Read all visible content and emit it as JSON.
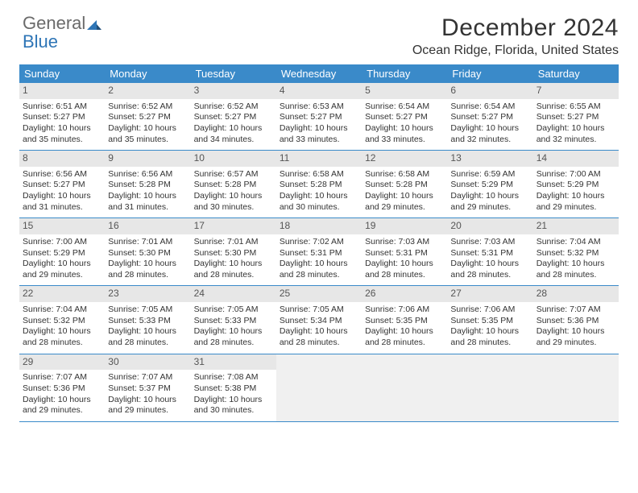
{
  "logo": {
    "text_gray": "General",
    "text_blue": "Blue"
  },
  "header": {
    "month_title": "December 2024",
    "location": "Ocean Ridge, Florida, United States"
  },
  "colors": {
    "header_bg": "#3a8ac9",
    "header_text": "#ffffff",
    "daynum_bg": "#e7e7e7",
    "border": "#3a8ac9",
    "logo_gray": "#6b6b6b",
    "logo_blue": "#2e75b6"
  },
  "weekdays": [
    "Sunday",
    "Monday",
    "Tuesday",
    "Wednesday",
    "Thursday",
    "Friday",
    "Saturday"
  ],
  "weeks": [
    [
      {
        "n": "1",
        "sr": "Sunrise: 6:51 AM",
        "ss": "Sunset: 5:27 PM",
        "dl1": "Daylight: 10 hours",
        "dl2": "and 35 minutes."
      },
      {
        "n": "2",
        "sr": "Sunrise: 6:52 AM",
        "ss": "Sunset: 5:27 PM",
        "dl1": "Daylight: 10 hours",
        "dl2": "and 35 minutes."
      },
      {
        "n": "3",
        "sr": "Sunrise: 6:52 AM",
        "ss": "Sunset: 5:27 PM",
        "dl1": "Daylight: 10 hours",
        "dl2": "and 34 minutes."
      },
      {
        "n": "4",
        "sr": "Sunrise: 6:53 AM",
        "ss": "Sunset: 5:27 PM",
        "dl1": "Daylight: 10 hours",
        "dl2": "and 33 minutes."
      },
      {
        "n": "5",
        "sr": "Sunrise: 6:54 AM",
        "ss": "Sunset: 5:27 PM",
        "dl1": "Daylight: 10 hours",
        "dl2": "and 33 minutes."
      },
      {
        "n": "6",
        "sr": "Sunrise: 6:54 AM",
        "ss": "Sunset: 5:27 PM",
        "dl1": "Daylight: 10 hours",
        "dl2": "and 32 minutes."
      },
      {
        "n": "7",
        "sr": "Sunrise: 6:55 AM",
        "ss": "Sunset: 5:27 PM",
        "dl1": "Daylight: 10 hours",
        "dl2": "and 32 minutes."
      }
    ],
    [
      {
        "n": "8",
        "sr": "Sunrise: 6:56 AM",
        "ss": "Sunset: 5:27 PM",
        "dl1": "Daylight: 10 hours",
        "dl2": "and 31 minutes."
      },
      {
        "n": "9",
        "sr": "Sunrise: 6:56 AM",
        "ss": "Sunset: 5:28 PM",
        "dl1": "Daylight: 10 hours",
        "dl2": "and 31 minutes."
      },
      {
        "n": "10",
        "sr": "Sunrise: 6:57 AM",
        "ss": "Sunset: 5:28 PM",
        "dl1": "Daylight: 10 hours",
        "dl2": "and 30 minutes."
      },
      {
        "n": "11",
        "sr": "Sunrise: 6:58 AM",
        "ss": "Sunset: 5:28 PM",
        "dl1": "Daylight: 10 hours",
        "dl2": "and 30 minutes."
      },
      {
        "n": "12",
        "sr": "Sunrise: 6:58 AM",
        "ss": "Sunset: 5:28 PM",
        "dl1": "Daylight: 10 hours",
        "dl2": "and 29 minutes."
      },
      {
        "n": "13",
        "sr": "Sunrise: 6:59 AM",
        "ss": "Sunset: 5:29 PM",
        "dl1": "Daylight: 10 hours",
        "dl2": "and 29 minutes."
      },
      {
        "n": "14",
        "sr": "Sunrise: 7:00 AM",
        "ss": "Sunset: 5:29 PM",
        "dl1": "Daylight: 10 hours",
        "dl2": "and 29 minutes."
      }
    ],
    [
      {
        "n": "15",
        "sr": "Sunrise: 7:00 AM",
        "ss": "Sunset: 5:29 PM",
        "dl1": "Daylight: 10 hours",
        "dl2": "and 29 minutes."
      },
      {
        "n": "16",
        "sr": "Sunrise: 7:01 AM",
        "ss": "Sunset: 5:30 PM",
        "dl1": "Daylight: 10 hours",
        "dl2": "and 28 minutes."
      },
      {
        "n": "17",
        "sr": "Sunrise: 7:01 AM",
        "ss": "Sunset: 5:30 PM",
        "dl1": "Daylight: 10 hours",
        "dl2": "and 28 minutes."
      },
      {
        "n": "18",
        "sr": "Sunrise: 7:02 AM",
        "ss": "Sunset: 5:31 PM",
        "dl1": "Daylight: 10 hours",
        "dl2": "and 28 minutes."
      },
      {
        "n": "19",
        "sr": "Sunrise: 7:03 AM",
        "ss": "Sunset: 5:31 PM",
        "dl1": "Daylight: 10 hours",
        "dl2": "and 28 minutes."
      },
      {
        "n": "20",
        "sr": "Sunrise: 7:03 AM",
        "ss": "Sunset: 5:31 PM",
        "dl1": "Daylight: 10 hours",
        "dl2": "and 28 minutes."
      },
      {
        "n": "21",
        "sr": "Sunrise: 7:04 AM",
        "ss": "Sunset: 5:32 PM",
        "dl1": "Daylight: 10 hours",
        "dl2": "and 28 minutes."
      }
    ],
    [
      {
        "n": "22",
        "sr": "Sunrise: 7:04 AM",
        "ss": "Sunset: 5:32 PM",
        "dl1": "Daylight: 10 hours",
        "dl2": "and 28 minutes."
      },
      {
        "n": "23",
        "sr": "Sunrise: 7:05 AM",
        "ss": "Sunset: 5:33 PM",
        "dl1": "Daylight: 10 hours",
        "dl2": "and 28 minutes."
      },
      {
        "n": "24",
        "sr": "Sunrise: 7:05 AM",
        "ss": "Sunset: 5:33 PM",
        "dl1": "Daylight: 10 hours",
        "dl2": "and 28 minutes."
      },
      {
        "n": "25",
        "sr": "Sunrise: 7:05 AM",
        "ss": "Sunset: 5:34 PM",
        "dl1": "Daylight: 10 hours",
        "dl2": "and 28 minutes."
      },
      {
        "n": "26",
        "sr": "Sunrise: 7:06 AM",
        "ss": "Sunset: 5:35 PM",
        "dl1": "Daylight: 10 hours",
        "dl2": "and 28 minutes."
      },
      {
        "n": "27",
        "sr": "Sunrise: 7:06 AM",
        "ss": "Sunset: 5:35 PM",
        "dl1": "Daylight: 10 hours",
        "dl2": "and 28 minutes."
      },
      {
        "n": "28",
        "sr": "Sunrise: 7:07 AM",
        "ss": "Sunset: 5:36 PM",
        "dl1": "Daylight: 10 hours",
        "dl2": "and 29 minutes."
      }
    ],
    [
      {
        "n": "29",
        "sr": "Sunrise: 7:07 AM",
        "ss": "Sunset: 5:36 PM",
        "dl1": "Daylight: 10 hours",
        "dl2": "and 29 minutes."
      },
      {
        "n": "30",
        "sr": "Sunrise: 7:07 AM",
        "ss": "Sunset: 5:37 PM",
        "dl1": "Daylight: 10 hours",
        "dl2": "and 29 minutes."
      },
      {
        "n": "31",
        "sr": "Sunrise: 7:08 AM",
        "ss": "Sunset: 5:38 PM",
        "dl1": "Daylight: 10 hours",
        "dl2": "and 30 minutes."
      },
      null,
      null,
      null,
      null
    ]
  ]
}
